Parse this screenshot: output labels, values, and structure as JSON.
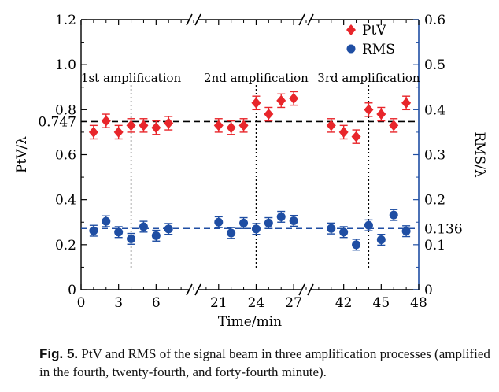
{
  "chart_data": {
    "type": "scatter",
    "xlabel": "Time/min",
    "ylabel_left": "PtV/λ",
    "ylabel_right": "RMS/λ",
    "ylim_left": [
      0,
      1.2
    ],
    "ylim_right": [
      0,
      0.6
    ],
    "left_ticks": [
      "0",
      "0.2",
      "0.4",
      "0.6",
      "0.8",
      "1.0",
      "1.2"
    ],
    "right_ticks": [
      "0",
      "0.1",
      "0.2",
      "0.3",
      "0.4",
      "0.5",
      "0.6"
    ],
    "x_segments": [
      {
        "range": [
          0,
          9
        ],
        "ticks": [
          0,
          3,
          6
        ]
      },
      {
        "range": [
          19,
          28
        ],
        "ticks": [
          21,
          24,
          27
        ]
      },
      {
        "range": [
          39,
          48
        ],
        "ticks": [
          42,
          45,
          48
        ]
      }
    ],
    "x_tick_labels": [
      "0",
      "3",
      "6",
      "21",
      "24",
      "27",
      "42",
      "45",
      "48"
    ],
    "axis_breaks": [
      "//",
      "//"
    ],
    "legend": {
      "placement": "top-right",
      "entries": [
        "PtV",
        "RMS"
      ]
    },
    "reference_lines": [
      {
        "axis": "left",
        "value": 0.747,
        "label": "0.747",
        "color": "#000000"
      },
      {
        "axis": "right",
        "value": 0.136,
        "label": "0.136",
        "color": "#1f4ea3"
      }
    ],
    "amplification_markers": [
      {
        "x": 4,
        "label": "1st amplification"
      },
      {
        "x": 24,
        "label": "2nd amplification"
      },
      {
        "x": 44,
        "label": "3rd amplification"
      }
    ],
    "series": [
      {
        "name": "PtV",
        "axis": "left",
        "marker": "diamond",
        "color": "#e8262b",
        "x": [
          1,
          2,
          3,
          4,
          5,
          6,
          7,
          21,
          22,
          23,
          24,
          25,
          26,
          27,
          41,
          42,
          43,
          44,
          45,
          46,
          47
        ],
        "y": [
          0.7,
          0.75,
          0.7,
          0.73,
          0.73,
          0.72,
          0.74,
          0.73,
          0.72,
          0.73,
          0.83,
          0.78,
          0.84,
          0.85,
          0.73,
          0.7,
          0.68,
          0.8,
          0.78,
          0.73,
          0.83
        ],
        "error": 0.03
      },
      {
        "name": "RMS",
        "axis": "right",
        "marker": "circle",
        "color": "#1f4ea3",
        "x": [
          1,
          2,
          3,
          4,
          5,
          6,
          7,
          21,
          22,
          23,
          24,
          25,
          26,
          27,
          41,
          42,
          43,
          44,
          45,
          46,
          47
        ],
        "y": [
          0.131,
          0.152,
          0.128,
          0.113,
          0.14,
          0.12,
          0.135,
          0.15,
          0.126,
          0.148,
          0.135,
          0.148,
          0.162,
          0.153,
          0.136,
          0.128,
          0.1,
          0.143,
          0.111,
          0.166,
          0.13
        ],
        "error": 0.012
      }
    ]
  },
  "caption": {
    "label": "Fig. 5.",
    "text": " PtV and RMS of the signal beam in three amplification processes (amplified in the fourth, twenty-fourth, and forty-fourth minute)."
  },
  "colors": {
    "ptv": "#e8262b",
    "rms": "#1f4ea3",
    "right_axis": "#1f4ea3"
  }
}
